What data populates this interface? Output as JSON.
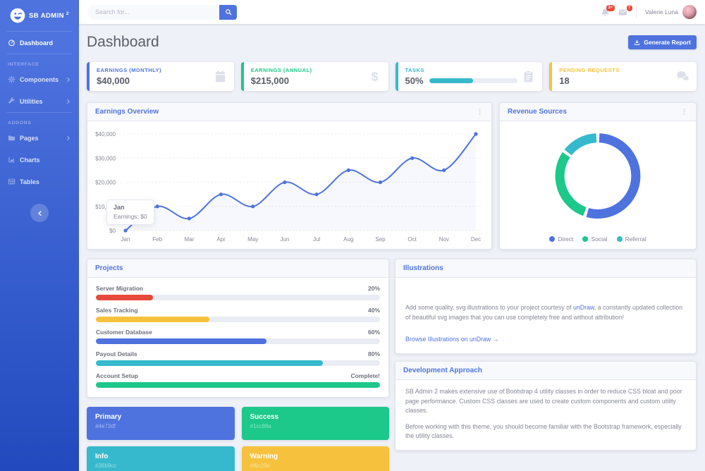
{
  "brand": {
    "title": "SB ADMIN",
    "sup": "2"
  },
  "topbar": {
    "search_placeholder": "Search for...",
    "alerts_badge": "3+",
    "messages_badge": "7",
    "user_name": "Valerie Luna"
  },
  "sidebar": {
    "dashboard_label": "Dashboard",
    "sections": [
      {
        "heading": "INTERFACE",
        "items": [
          {
            "label": "Components"
          },
          {
            "label": "Utilities"
          }
        ]
      },
      {
        "heading": "ADDONS",
        "items": [
          {
            "label": "Pages"
          },
          {
            "label": "Charts"
          },
          {
            "label": "Tables"
          }
        ]
      }
    ]
  },
  "page": {
    "title": "Dashboard",
    "generate_report": "Generate Report"
  },
  "stat_cards": [
    {
      "label": "EARNINGS (MONTHLY)",
      "value": "$40,000",
      "color": "#4e73df",
      "icon": "calendar"
    },
    {
      "label": "EARNINGS (ANNUAL)",
      "value": "$215,000",
      "color": "#1cc88a",
      "icon": "dollar-sign"
    },
    {
      "label": "TASKS",
      "value": "50%",
      "progress": 50,
      "color": "#36b9cc",
      "icon": "clipboard"
    },
    {
      "label": "PENDING REQUESTS",
      "value": "18",
      "color": "#f6c23e",
      "icon": "comments"
    }
  ],
  "earnings_overview": {
    "title": "Earnings Overview",
    "tooltip": {
      "title": "Jan",
      "text": "Earnings: $0"
    }
  },
  "revenue_sources": {
    "title": "Revenue Sources"
  },
  "chart_data": [
    {
      "type": "line",
      "title": "Earnings Overview",
      "x": [
        "Jan",
        "Feb",
        "Mar",
        "Apr",
        "May",
        "Jun",
        "Jul",
        "Aug",
        "Sep",
        "Oct",
        "Nov",
        "Dec"
      ],
      "series": [
        {
          "name": "Earnings",
          "values": [
            0,
            10000,
            5000,
            15000,
            10000,
            20000,
            15000,
            25000,
            20000,
            30000,
            25000,
            40000
          ]
        }
      ],
      "ylim": [
        0,
        40000
      ],
      "ytick_values": [
        0,
        10000,
        20000,
        30000,
        40000
      ],
      "ytick_labels": [
        "$0",
        "$10,000",
        "$20,000",
        "$30,000",
        "$40,000"
      ],
      "line_color": "#4e73df",
      "fill_color": "rgba(78,115,223,0.05)",
      "grid": true,
      "legend_position": "none"
    },
    {
      "type": "pie",
      "title": "Revenue Sources",
      "labels": [
        "Direct",
        "Social",
        "Referral"
      ],
      "values": [
        55,
        30,
        15
      ],
      "colors": [
        "#4e73df",
        "#1cc88a",
        "#36b9cc"
      ],
      "donut": true,
      "legend_position": "bottom"
    }
  ],
  "projects": {
    "title": "Projects",
    "items": [
      {
        "name": "Server Migration",
        "value": "20%",
        "pct": 20,
        "color": "#e74a3b"
      },
      {
        "name": "Sales Tracking",
        "value": "40%",
        "pct": 40,
        "color": "#f6c23e"
      },
      {
        "name": "Customer Database",
        "value": "60%",
        "pct": 60,
        "color": "#4e73df"
      },
      {
        "name": "Payout Details",
        "value": "80%",
        "pct": 80,
        "color": "#36b9cc"
      },
      {
        "name": "Account Setup",
        "value": "Complete!",
        "pct": 100,
        "color": "#1cc88a"
      }
    ]
  },
  "illustrations": {
    "title": "Illustrations",
    "body_pre": "Add some quality, svg illustrations to your project courtesy of ",
    "link_inline": "unDraw",
    "body_post": ", a constantly updated collection of beautiful svg images that you can use completely free and without attribution!",
    "browse_link": "Browse Illustrations on unDraw →"
  },
  "development": {
    "title": "Development Approach",
    "p1": "SB Admin 2 makes extensive use of Bootstrap 4 utility classes in order to reduce CSS bloat and poor page performance. Custom CSS classes are used to create custom components and custom utility classes.",
    "p2": "Before working with this theme, you should become familiar with the Bootstrap framework, especially the utility classes."
  },
  "color_cards": [
    {
      "name": "Primary",
      "hex": "#4e73df"
    },
    {
      "name": "Success",
      "hex": "#1cc88a"
    },
    {
      "name": "Info",
      "hex": "#36b9cc"
    },
    {
      "name": "Warning",
      "hex": "#f6c23e"
    }
  ]
}
